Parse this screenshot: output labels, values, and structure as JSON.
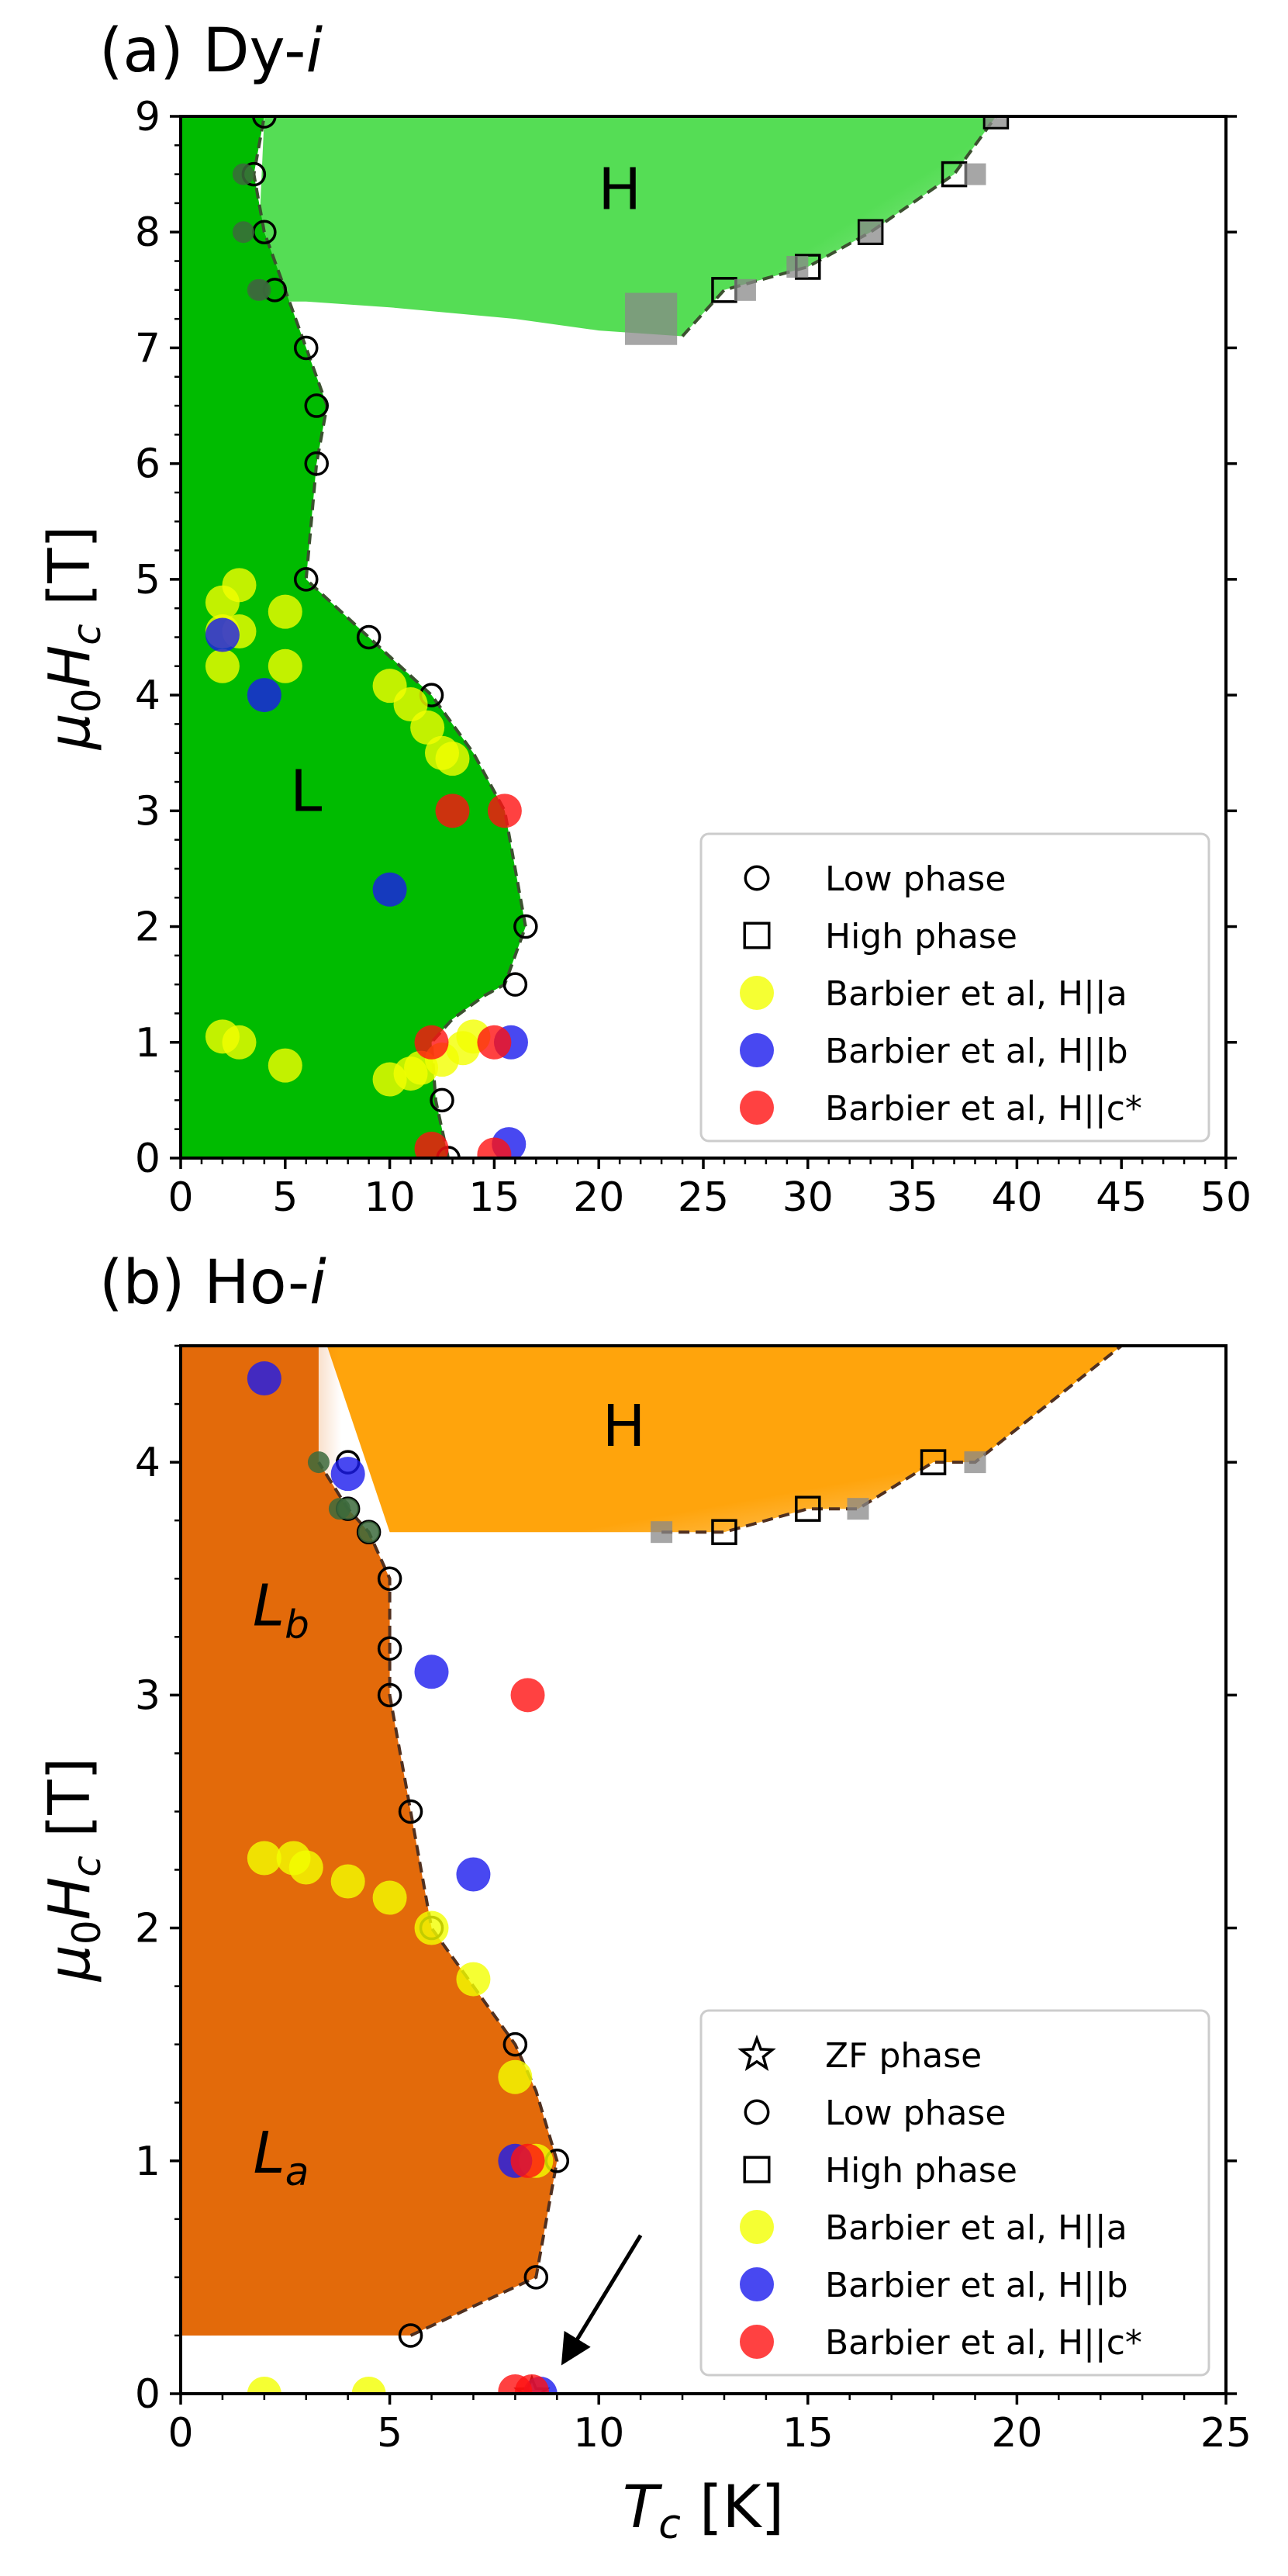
{
  "colors": {
    "dy_low_phase": "#00bb00",
    "dy_high_phase": "#55dd55",
    "ho_low_phase": "#e36a0a",
    "ho_high_phase": "#ffa40c",
    "barbier_a": "#f2ff00",
    "barbier_b": "#1a1aee",
    "barbier_c": "#ff1111",
    "dark_marker": "#3c6a3c",
    "grey_marker": "#888888"
  },
  "chart_data": [
    {
      "id": "panel-a",
      "type": "scatter",
      "panel_label_prefix": "(a) Dy-",
      "panel_label_italic": "i",
      "xlabel_main": "",
      "ylabel_main": "μ",
      "ylabel_sub0": "0",
      "ylabel_H": "H",
      "ylabel_subc": "c",
      "ylabel_unit": " [T]",
      "xlim": [
        0,
        50
      ],
      "ylim": [
        0,
        9
      ],
      "xticks": [
        "0",
        "5",
        "10",
        "15",
        "20",
        "25",
        "30",
        "35",
        "40",
        "45",
        "50"
      ],
      "yticks": [
        "0",
        "1",
        "2",
        "3",
        "4",
        "5",
        "6",
        "7",
        "8",
        "9"
      ],
      "region_labels": [
        {
          "text": "H",
          "x": 21,
          "y": 8.2
        },
        {
          "text": "L",
          "x": 6,
          "y": 3.0
        }
      ],
      "boundaries": {
        "low": {
          "T": [
            12.8,
            12.2,
            12.0,
            13.0,
            14.5,
            15.5,
            16.5,
            15.5,
            14.0,
            12.0,
            9.0,
            6.0,
            6.5,
            7.0,
            6.0,
            5.0,
            4.0,
            3.5,
            4.0
          ],
          "H": [
            0,
            0.5,
            1.0,
            1.2,
            1.4,
            1.5,
            2.0,
            3.0,
            3.5,
            4.0,
            4.5,
            5.0,
            6.0,
            6.5,
            7.0,
            7.5,
            8.0,
            8.5,
            9.0
          ]
        },
        "high": {
          "T": [
            5.0,
            6.0,
            10.0,
            16.0,
            20.0,
            24.0,
            26.0,
            30.0,
            33.0,
            37.0,
            39.0
          ],
          "H": [
            7.4,
            7.4,
            7.35,
            7.25,
            7.15,
            7.1,
            7.5,
            7.7,
            8.0,
            8.5,
            9.0
          ]
        }
      },
      "series": [
        {
          "name": "Low phase",
          "marker": "open-circle",
          "T": [
            4.0,
            3.5,
            4.0,
            4.5,
            6.0,
            6.5,
            6.5,
            6.0,
            9.0,
            12.0,
            16.5,
            16.0,
            12.5,
            12.8
          ],
          "H": [
            9.0,
            8.5,
            8.0,
            7.5,
            7.0,
            6.5,
            6.0,
            5.0,
            4.5,
            4.0,
            2.0,
            1.5,
            0.5,
            0.0
          ]
        },
        {
          "name": "Low phase (dark)",
          "legend": false,
          "marker": "dark-circle",
          "T": [
            3.0,
            3.0,
            3.8,
            3.7
          ],
          "H": [
            8.5,
            8.0,
            7.5,
            7.5
          ]
        },
        {
          "name": "High phase",
          "marker": "open-square",
          "T": [
            26.0,
            30.0,
            33.0,
            37.0,
            39.0
          ],
          "H": [
            7.5,
            7.7,
            8.0,
            8.5,
            9.0
          ]
        },
        {
          "name": "High phase (grey)",
          "legend": false,
          "marker": "grey-square",
          "T": [
            27.0,
            29.5,
            33.0,
            38.0,
            39.0,
            22.5
          ],
          "H": [
            7.5,
            7.7,
            8.0,
            8.5,
            9.0,
            7.25
          ],
          "sizes": [
            1,
            1,
            1,
            1,
            1,
            2.4
          ]
        },
        {
          "name": "Barbier et al, H||a",
          "marker": "filled-a",
          "T": [
            2.0,
            2.0,
            2.0,
            2.8,
            2.8,
            5.0,
            5.0,
            10.0,
            11.0,
            11.8,
            12.5,
            13.0,
            2.0,
            2.8,
            5.0,
            10.0,
            11.0,
            11.5,
            12.5,
            13.5,
            14.0
          ],
          "H": [
            4.25,
            4.55,
            4.8,
            4.95,
            4.55,
            4.72,
            4.25,
            4.08,
            3.92,
            3.72,
            3.5,
            3.45,
            1.05,
            1.0,
            0.8,
            0.68,
            0.73,
            0.78,
            0.85,
            0.95,
            1.05
          ]
        },
        {
          "name": "Barbier et al, H||b",
          "marker": "filled-b",
          "T": [
            2.0,
            4.0,
            10.0,
            15.8,
            15.7
          ],
          "H": [
            4.52,
            4.0,
            2.32,
            1.0,
            0.12
          ]
        },
        {
          "name": "Barbier et al, H||c*",
          "marker": "filled-c",
          "T": [
            13.0,
            15.5,
            15.0,
            12.0,
            12.0,
            15.0
          ],
          "H": [
            3.0,
            3.0,
            1.0,
            1.0,
            0.08,
            0.03
          ]
        }
      ],
      "legend": {
        "position": "lower-right",
        "entries": [
          {
            "marker": "open-circle",
            "label": "Low phase"
          },
          {
            "marker": "open-square",
            "label": "High phase"
          },
          {
            "marker": "filled-a",
            "label": "Barbier et al, H||a"
          },
          {
            "marker": "filled-b",
            "label": "Barbier et al, H||b"
          },
          {
            "marker": "filled-c",
            "label": "Barbier et al, H||c*"
          }
        ]
      }
    },
    {
      "id": "panel-b",
      "type": "scatter",
      "panel_label_prefix": "(b) Ho-",
      "panel_label_italic": "i",
      "xlabel_T": "T",
      "xlabel_sub": "c",
      "xlabel_unit": " [K]",
      "ylabel_main": "μ",
      "ylabel_sub0": "0",
      "ylabel_H": "H",
      "ylabel_subc": "c",
      "ylabel_unit": " [T]",
      "xlim": [
        0,
        25
      ],
      "ylim": [
        0,
        4.5
      ],
      "xticks": [
        "0",
        "5",
        "10",
        "15",
        "20",
        "25"
      ],
      "yticks": [
        "0",
        "1",
        "2",
        "3",
        "4"
      ],
      "region_labels": [
        {
          "text": "H",
          "sub": "",
          "x": 10.6,
          "y": 4.07
        },
        {
          "text": "L",
          "sub": "b",
          "x": 2.4,
          "y": 3.3
        },
        {
          "text": "L",
          "sub": "a",
          "x": 2.4,
          "y": 0.95
        }
      ],
      "boundaries": {
        "low": {
          "T": [
            5.5,
            8.5,
            9.0,
            8.5,
            8.0,
            7.0,
            6.0,
            5.5,
            5.0,
            5.0,
            5.0,
            4.5,
            4.0,
            3.3
          ],
          "H": [
            0.25,
            0.5,
            1.0,
            1.3,
            1.5,
            1.75,
            2.0,
            2.5,
            3.0,
            3.2,
            3.5,
            3.7,
            3.8,
            4.0
          ]
        },
        "high": {
          "T": [
            11.5,
            13.0,
            15.0,
            16.2,
            18.0,
            19.0,
            22.5
          ],
          "H": [
            3.7,
            3.7,
            3.8,
            3.8,
            4.0,
            4.0,
            4.5
          ]
        }
      },
      "series": [
        {
          "name": "ZF phase",
          "marker": "open-star",
          "T": [
            8.4
          ],
          "H": [
            0.0
          ]
        },
        {
          "name": "Low phase",
          "marker": "open-circle",
          "T": [
            4.0,
            4.0,
            4.5,
            5.0,
            5.0,
            5.0,
            5.5,
            6.0,
            8.0,
            9.0,
            8.5,
            5.5
          ],
          "H": [
            4.0,
            3.8,
            3.7,
            3.5,
            3.2,
            3.0,
            2.5,
            2.0,
            1.5,
            1.0,
            0.5,
            0.25
          ]
        },
        {
          "name": "Low phase (dark)",
          "legend": false,
          "marker": "dark-circle",
          "T": [
            3.3,
            3.8,
            4.0,
            4.5
          ],
          "H": [
            4.0,
            3.8,
            3.8,
            3.7
          ]
        },
        {
          "name": "High phase",
          "marker": "open-square",
          "T": [
            13.0,
            15.0,
            18.0
          ],
          "H": [
            3.7,
            3.8,
            4.0
          ]
        },
        {
          "name": "High phase (grey)",
          "legend": false,
          "marker": "grey-square",
          "T": [
            11.5,
            16.2,
            19.0
          ],
          "H": [
            3.7,
            3.8,
            4.0
          ]
        },
        {
          "name": "Barbier et al, H||a",
          "marker": "filled-a",
          "T": [
            2.0,
            2.7,
            3.0,
            4.0,
            5.0,
            6.0,
            7.0,
            8.0,
            8.5,
            2.0,
            4.5
          ],
          "H": [
            2.3,
            2.3,
            2.26,
            2.2,
            2.13,
            2.0,
            1.78,
            1.36,
            1.0,
            0.0,
            0.0
          ]
        },
        {
          "name": "Barbier et al, H||b",
          "marker": "filled-b",
          "T": [
            2.0,
            4.0,
            6.0,
            7.0,
            8.0,
            8.6
          ],
          "H": [
            4.36,
            3.95,
            3.1,
            2.23,
            1.0,
            0.0
          ]
        },
        {
          "name": "Barbier et al, H||c*",
          "marker": "filled-c",
          "T": [
            8.3,
            8.3,
            8.0,
            8.4
          ],
          "H": [
            3.0,
            1.0,
            0.01,
            0.01
          ]
        }
      ],
      "arrow": {
        "from": [
          11.0,
          0.68
        ],
        "to": [
          9.2,
          0.15
        ]
      },
      "legend": {
        "position": "lower-right",
        "entries": [
          {
            "marker": "open-star",
            "label": "ZF phase"
          },
          {
            "marker": "open-circle",
            "label": "Low phase"
          },
          {
            "marker": "open-square",
            "label": "High phase"
          },
          {
            "marker": "filled-a",
            "label": "Barbier et al, H||a"
          },
          {
            "marker": "filled-b",
            "label": "Barbier et al, H||b"
          },
          {
            "marker": "filled-c",
            "label": "Barbier et al, H||c*"
          }
        ]
      }
    }
  ]
}
